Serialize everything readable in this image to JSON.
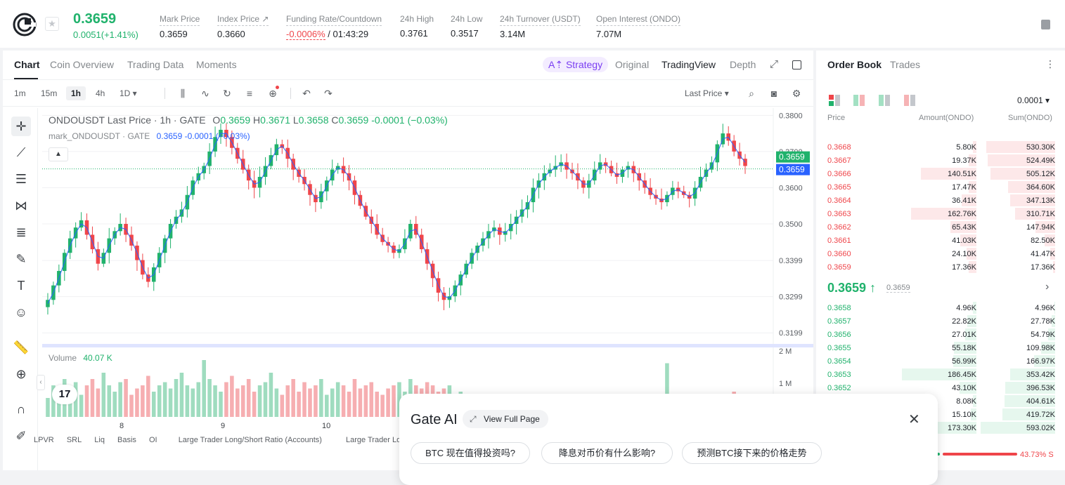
{
  "ticker": {
    "last_price": "0.3659",
    "change": "0.0051(+1.41%)",
    "stats": [
      {
        "label": "Mark Price",
        "value": "0.3659"
      },
      {
        "label": "Index Price ↗",
        "value": "0.3660"
      },
      {
        "label": "Funding Rate/Countdown",
        "value_red": "-0.0006%",
        "value": " / 01:43:29"
      },
      {
        "label": "24h High",
        "value": "0.3761"
      },
      {
        "label": "24h Low",
        "value": "0.3517"
      },
      {
        "label": "24h Turnover (USDT)",
        "value": "3.14M"
      },
      {
        "label": "Open Interest (ONDO)",
        "value": "7.07M"
      }
    ]
  },
  "chart_tabs": [
    "Chart",
    "Coin Overview",
    "Trading Data",
    "Moments"
  ],
  "strategy_label": "A⇡ Strategy",
  "view_options": [
    "Original",
    "TradingView",
    "Depth"
  ],
  "toolbar": {
    "intervals": [
      "1m",
      "15m",
      "1h",
      "4h",
      "1D ▾"
    ],
    "price_type": "Last Price ▾"
  },
  "legend": {
    "symbol": "ONDOUSDT Last Price · 1h · GATE",
    "ohlc": [
      {
        "k": "O",
        "v": "0.3659"
      },
      {
        "k": "H",
        "v": "0.3671"
      },
      {
        "k": "L",
        "v": "0.3658"
      },
      {
        "k": "C",
        "v": "0.3659"
      }
    ],
    "delta": "-0.0001 (−0.03%)",
    "mark_symbol": "mark_ONDOUSDT · GATE",
    "mark_value": "0.3659 -0.0001 (−0.03%)"
  },
  "volume": {
    "label": "Volume",
    "value": "40.07 K"
  },
  "tv_logo_text": "17",
  "indicators": [
    "LPVR",
    "SRL",
    "Liq",
    "Basis",
    "OI",
    "Large Trader Long/Short Ratio (Accounts)",
    "Large Trader Long/Sh"
  ],
  "chart_data": {
    "type": "candlestick",
    "price_axis_ticks": [
      "0.3800",
      "0.3700",
      "0.3600",
      "0.3500",
      "0.3399",
      "0.3299",
      "0.3199"
    ],
    "volume_axis_ticks": [
      "2 M",
      "1 M"
    ],
    "x_ticks": [
      "8",
      "9",
      "10"
    ],
    "current_price_label": "0.3659",
    "mark_price_label": "0.3659",
    "ylim": [
      0.318,
      0.382
    ],
    "close_path": [
      0.329,
      0.333,
      0.337,
      0.342,
      0.346,
      0.349,
      0.351,
      0.347,
      0.343,
      0.339,
      0.342,
      0.346,
      0.348,
      0.35,
      0.347,
      0.344,
      0.34,
      0.336,
      0.334,
      0.338,
      0.342,
      0.346,
      0.35,
      0.352,
      0.354,
      0.358,
      0.362,
      0.364,
      0.366,
      0.37,
      0.374,
      0.376,
      0.374,
      0.371,
      0.368,
      0.365,
      0.362,
      0.36,
      0.363,
      0.366,
      0.369,
      0.372,
      0.371,
      0.368,
      0.365,
      0.363,
      0.361,
      0.358,
      0.356,
      0.359,
      0.362,
      0.365,
      0.366,
      0.364,
      0.362,
      0.358,
      0.355,
      0.352,
      0.35,
      0.347,
      0.345,
      0.344,
      0.342,
      0.343,
      0.346,
      0.35,
      0.347,
      0.343,
      0.339,
      0.335,
      0.331,
      0.329,
      0.33,
      0.333,
      0.336,
      0.339,
      0.342,
      0.344,
      0.346,
      0.348,
      0.349,
      0.347,
      0.348,
      0.35,
      0.352,
      0.354,
      0.356,
      0.36,
      0.362,
      0.364,
      0.365,
      0.366,
      0.367,
      0.365,
      0.364,
      0.362,
      0.36,
      0.362,
      0.365,
      0.367,
      0.366,
      0.364,
      0.363,
      0.365,
      0.366,
      0.364,
      0.362,
      0.36,
      0.358,
      0.357,
      0.356,
      0.358,
      0.36,
      0.359,
      0.358,
      0.357,
      0.36,
      0.363,
      0.365,
      0.367,
      0.372,
      0.375,
      0.373,
      0.37,
      0.368,
      0.366
    ],
    "volume_levels": [
      0.3,
      0.5,
      0.45,
      0.6,
      0.4,
      0.55,
      0.35,
      0.5,
      0.6,
      0.45,
      0.7,
      0.5,
      0.4,
      0.55,
      0.6,
      0.35,
      0.45,
      0.5,
      0.65,
      0.4,
      0.5,
      0.55,
      0.45,
      0.6,
      0.7,
      0.5,
      0.45,
      0.55,
      0.9,
      0.6,
      0.5,
      0.4,
      0.55,
      0.65,
      0.45,
      0.5,
      0.6,
      0.4,
      0.5,
      0.55,
      0.7,
      0.45,
      0.35,
      0.5,
      0.6,
      0.4,
      0.55,
      0.45,
      0.5,
      0.6,
      0.35,
      0.45,
      0.55,
      0.5,
      0.4,
      0.6,
      0.45,
      0.5,
      0.55,
      0.4,
      0.35,
      0.45,
      0.5,
      0.55,
      0.4,
      0.6,
      0.5,
      0.45,
      0.55,
      0.5,
      0.4,
      0.45,
      0.5,
      0.35,
      0.4,
      0.3,
      0.35,
      0.3,
      0.25,
      0.2,
      0.3,
      0.25,
      0.3,
      0.2,
      0.25,
      0.3,
      0.2,
      0.25,
      0.3,
      0.2,
      0.35,
      0.25,
      0.3,
      0.2,
      0.25,
      0.3,
      0.35,
      0.2,
      0.25,
      0.3,
      0.2,
      0.3,
      0.25,
      0.2,
      0.3,
      0.2,
      0.25,
      0.3,
      0.2,
      0.3,
      0.25,
      0.85,
      0.25,
      0.3,
      0.2,
      0.25,
      0.3,
      0.2,
      0.25,
      0.3,
      0.35,
      0.25,
      0.3,
      0.4,
      0.3,
      0.25
    ]
  },
  "order_book": {
    "tabs": [
      "Order Book",
      "Trades"
    ],
    "precision": "0.0001 ▾",
    "headers": [
      "Price",
      "Amount(ONDO)",
      "Sum(ONDO)"
    ],
    "asks": [
      {
        "price": "0.3668",
        "amount": "5.80K",
        "sum": "530.30K",
        "depth": 0.92,
        "amt_share": 0.03
      },
      {
        "price": "0.3667",
        "amount": "19.37K",
        "sum": "524.49K",
        "depth": 0.91,
        "amt_share": 0.1
      },
      {
        "price": "0.3666",
        "amount": "140.51K",
        "sum": "505.12K",
        "depth": 0.87,
        "amt_share": 0.75
      },
      {
        "price": "0.3665",
        "amount": "17.47K",
        "sum": "364.60K",
        "depth": 0.63,
        "amt_share": 0.1
      },
      {
        "price": "0.3664",
        "amount": "36.41K",
        "sum": "347.13K",
        "depth": 0.6,
        "amt_share": 0.2
      },
      {
        "price": "0.3663",
        "amount": "162.76K",
        "sum": "310.71K",
        "depth": 0.54,
        "amt_share": 0.88
      },
      {
        "price": "0.3662",
        "amount": "65.43K",
        "sum": "147.94K",
        "depth": 0.26,
        "amt_share": 0.35
      },
      {
        "price": "0.3661",
        "amount": "41.03K",
        "sum": "82.50K",
        "depth": 0.14,
        "amt_share": 0.22
      },
      {
        "price": "0.3660",
        "amount": "24.10K",
        "sum": "41.47K",
        "depth": 0.07,
        "amt_share": 0.13
      },
      {
        "price": "0.3659",
        "amount": "17.36K",
        "sum": "17.36K",
        "depth": 0.03,
        "amt_share": 0.1
      }
    ],
    "mid_price": "0.3659 ↑",
    "mid_mark": "0.3659",
    "bids": [
      {
        "price": "0.3658",
        "amount": "4.96K",
        "sum": "4.96K",
        "depth": 0.01,
        "amt_share": 0.03
      },
      {
        "price": "0.3657",
        "amount": "22.82K",
        "sum": "27.78K",
        "depth": 0.05,
        "amt_share": 0.12
      },
      {
        "price": "0.3656",
        "amount": "27.01K",
        "sum": "54.79K",
        "depth": 0.09,
        "amt_share": 0.15
      },
      {
        "price": "0.3655",
        "amount": "55.18K",
        "sum": "109.98K",
        "depth": 0.19,
        "amt_share": 0.3
      },
      {
        "price": "0.3654",
        "amount": "56.99K",
        "sum": "166.97K",
        "depth": 0.28,
        "amt_share": 0.31
      },
      {
        "price": "0.3653",
        "amount": "186.45K",
        "sum": "353.42K",
        "depth": 0.6,
        "amt_share": 1.0
      },
      {
        "price": "0.3652",
        "amount": "43.10K",
        "sum": "396.53K",
        "depth": 0.67,
        "amt_share": 0.23
      },
      {
        "price": "",
        "amount": "8.08K",
        "sum": "404.61K",
        "depth": 0.68,
        "amt_share": 0.05
      },
      {
        "price": "",
        "amount": "15.10K",
        "sum": "419.72K",
        "depth": 0.71,
        "amt_share": 0.08
      },
      {
        "price": "",
        "amount": "173.30K",
        "sum": "593.02K",
        "depth": 1.0,
        "amt_share": 0.93
      }
    ],
    "sell_ratio": "43.73% S"
  },
  "gate_ai": {
    "title": "Gate AI",
    "view_full_page": "View Full Page",
    "suggestions": [
      "BTC 现在值得投资吗?",
      "降息对币价有什么影响?",
      "预测BTC接下来的价格走势"
    ]
  },
  "colors": {
    "up": "#20b26c",
    "down": "#ef454a",
    "accent": "#7b3ff2"
  }
}
